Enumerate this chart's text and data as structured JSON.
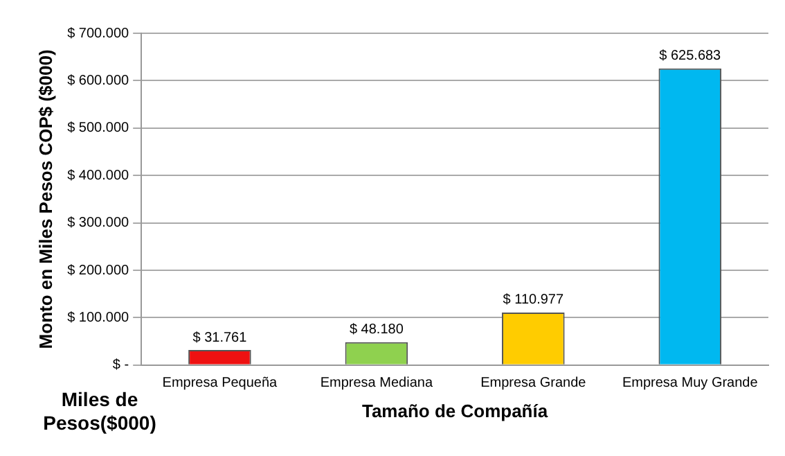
{
  "chart_data": {
    "type": "bar",
    "xlabel": "Tamaño de Compañía",
    "ylabel": "Monto en Miles Pesos COP$ ($000)",
    "categories": [
      "Empresa Pequeña",
      "Empresa Mediana",
      "Empresa Grande",
      "Empresa Muy Grande"
    ],
    "values": [
      31761,
      48180,
      110977,
      625683
    ],
    "colors": [
      "#ee1111",
      "#8fd14f",
      "#ffcc00",
      "#00b8f0"
    ],
    "value_labels": [
      "$ 31.761",
      "$ 48.180",
      "$ 110.977",
      "$ 625.683"
    ],
    "ylim": [
      0,
      700000
    ],
    "yticks": [
      {
        "value": 0,
        "label": "$ -"
      },
      {
        "value": 100000,
        "label": "$ 100.000"
      },
      {
        "value": 200000,
        "label": "$ 200.000"
      },
      {
        "value": 300000,
        "label": "$ 300.000"
      },
      {
        "value": 400000,
        "label": "$ 400.000"
      },
      {
        "value": 500000,
        "label": "$ 500.000"
      },
      {
        "value": 600000,
        "label": "$ 600.000"
      },
      {
        "value": 700000,
        "label": "$ 700.000"
      }
    ],
    "grid": "y",
    "legend": false,
    "annotations": [
      "Miles de Pesos($000)"
    ]
  }
}
